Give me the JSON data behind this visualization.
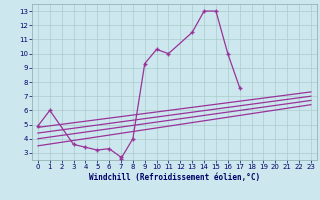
{
  "xlabel": "Windchill (Refroidissement éolien,°C)",
  "bg_color": "#cce8ee",
  "line_color": "#993399",
  "grid_color": "#aacccc",
  "series1_x": [
    0,
    1,
    3,
    4,
    5,
    6,
    7
  ],
  "series1_y": [
    4.9,
    6.0,
    3.6,
    3.4,
    3.2,
    3.3,
    2.7
  ],
  "series2_x": [
    7,
    8,
    9,
    10,
    11,
    13,
    14,
    15,
    16,
    17
  ],
  "series2_y": [
    2.6,
    4.0,
    9.3,
    10.3,
    10.0,
    11.5,
    13.0,
    13.0,
    10.0,
    7.6
  ],
  "linear_lines": [
    {
      "x": [
        0,
        23
      ],
      "y": [
        4.8,
        7.3
      ]
    },
    {
      "x": [
        0,
        23
      ],
      "y": [
        4.4,
        7.0
      ]
    },
    {
      "x": [
        0,
        23
      ],
      "y": [
        4.0,
        6.7
      ]
    },
    {
      "x": [
        0,
        23
      ],
      "y": [
        3.5,
        6.4
      ]
    }
  ],
  "xlim": [
    -0.5,
    23.5
  ],
  "ylim": [
    2.5,
    13.5
  ],
  "yticks": [
    3,
    4,
    5,
    6,
    7,
    8,
    9,
    10,
    11,
    12,
    13
  ],
  "xticks": [
    0,
    1,
    2,
    3,
    4,
    5,
    6,
    7,
    8,
    9,
    10,
    11,
    12,
    13,
    14,
    15,
    16,
    17,
    18,
    19,
    20,
    21,
    22,
    23
  ],
  "tick_fontsize": 5.0,
  "xlabel_fontsize": 5.5,
  "marker_size": 3.5,
  "line_width": 0.9
}
